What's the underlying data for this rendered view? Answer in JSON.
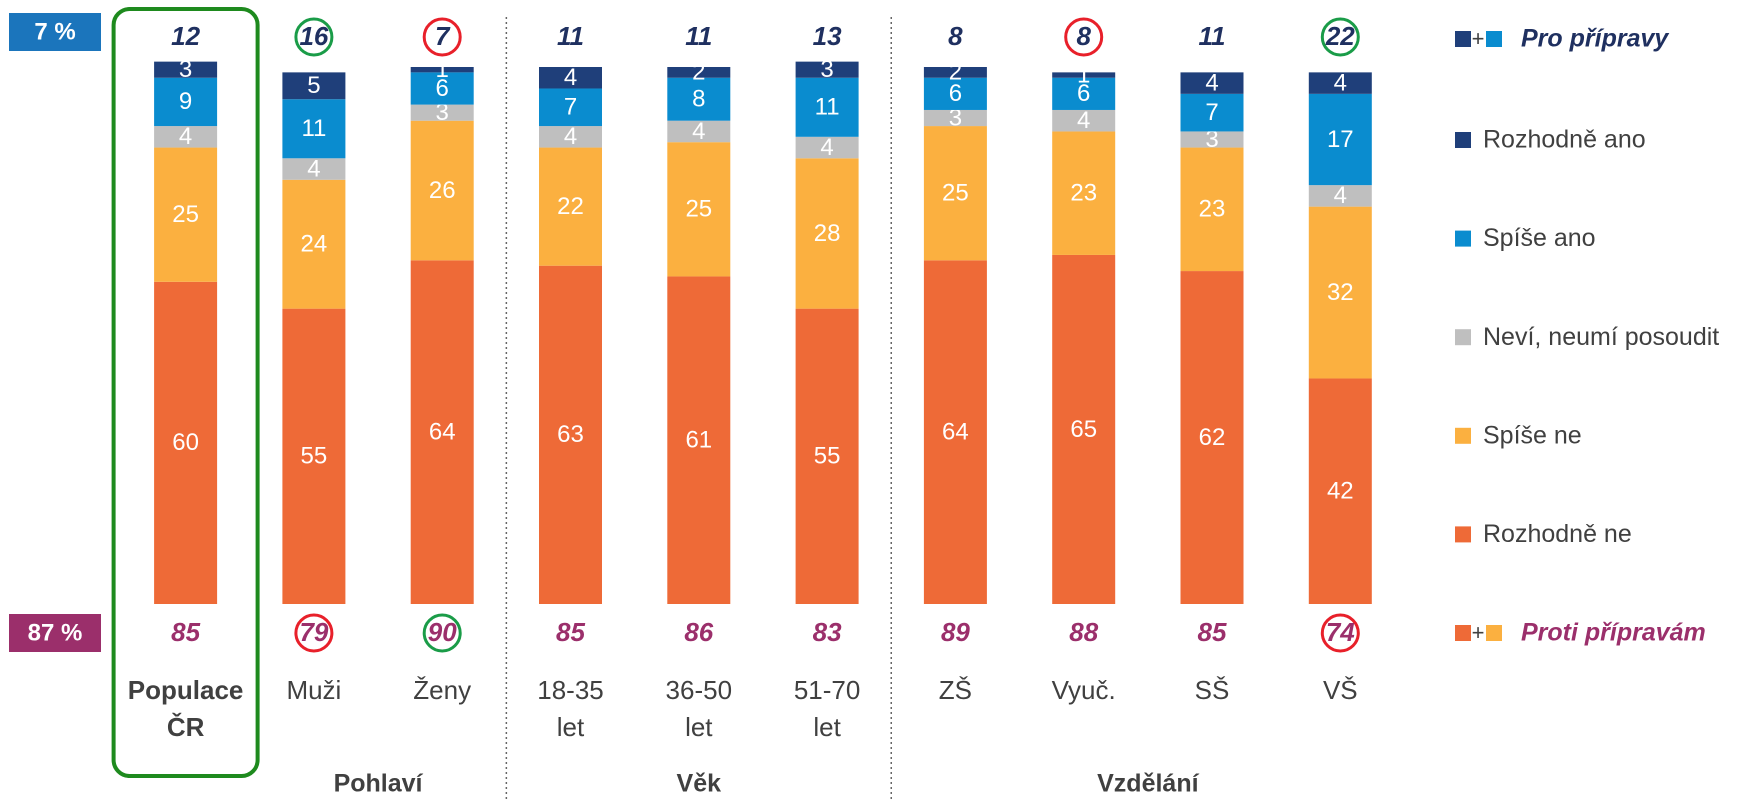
{
  "chart_data": {
    "type": "stacked_bar",
    "total_boxes": {
      "pro": "7 %",
      "proti": "87 %"
    },
    "categories": [
      [
        "Populace",
        "ČR"
      ],
      [
        "Muži"
      ],
      [
        "Ženy"
      ],
      [
        "18-35",
        "let"
      ],
      [
        "36-50",
        "let"
      ],
      [
        "51-70",
        "let"
      ],
      [
        "ZŠ"
      ],
      [
        "Vyuč."
      ],
      [
        "SŠ"
      ],
      [
        "VŠ"
      ]
    ],
    "groups": [
      {
        "name": "Pohlaví",
        "span": [
          1,
          2
        ]
      },
      {
        "name": "Věk",
        "span": [
          3,
          5
        ]
      },
      {
        "name": "Vzdělání",
        "span": [
          6,
          9
        ]
      }
    ],
    "series": [
      {
        "name": "Rozhodně ne",
        "color": "#ee6a37",
        "values": [
          60,
          55,
          64,
          63,
          61,
          55,
          64,
          65,
          62,
          42
        ]
      },
      {
        "name": "Spíše ne",
        "color": "#fbb040",
        "values": [
          25,
          24,
          26,
          22,
          25,
          28,
          25,
          23,
          23,
          32
        ]
      },
      {
        "name": "Neví, neumí posoudit",
        "color": "#bfbfbf",
        "values": [
          4,
          4,
          3,
          4,
          4,
          4,
          3,
          4,
          3,
          4
        ]
      },
      {
        "name": "Spíše ano",
        "color": "#0a8ccf",
        "values": [
          9,
          11,
          6,
          7,
          8,
          11,
          6,
          6,
          7,
          17
        ]
      },
      {
        "name": "Rozhodně ano",
        "color": "#1f3f7a",
        "values": [
          3,
          5,
          1,
          4,
          2,
          3,
          2,
          1,
          4,
          4
        ]
      }
    ],
    "pro_total": {
      "name": "Pro přípravy",
      "color": "#1f3060",
      "values": [
        12,
        16,
        7,
        11,
        11,
        13,
        8,
        8,
        11,
        22
      ],
      "highlight": [
        null,
        "#1a9c48",
        "#e8202a",
        null,
        null,
        null,
        null,
        "#e8202a",
        null,
        "#1a9c48"
      ]
    },
    "proti_total": {
      "name": "Proti přípravám",
      "color": "#9b2f6b",
      "values": [
        85,
        79,
        90,
        85,
        86,
        83,
        89,
        88,
        85,
        74
      ],
      "highlight": [
        null,
        "#e8202a",
        "#1a9c48",
        null,
        null,
        null,
        null,
        null,
        null,
        "#e8202a"
      ]
    },
    "legend_plus": "+",
    "highlight_column": {
      "index": 0,
      "color": "#1e8a1e"
    }
  }
}
